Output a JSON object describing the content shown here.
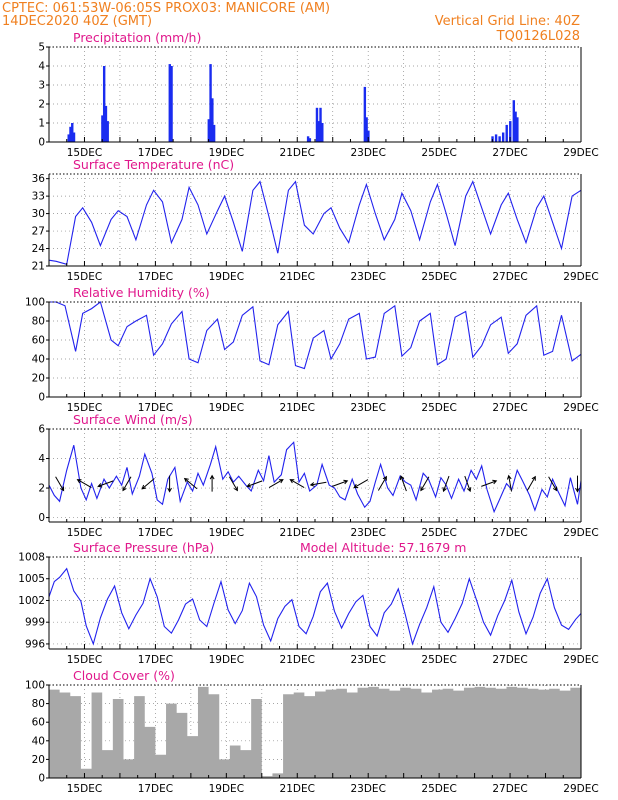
{
  "header": {
    "line1_left": "CPTEC:   061:53W-06:05S   PROX03: MANICORE (AM)",
    "line2_left": "14DEC2020 40Z (GMT)",
    "line2_right": "Vertical Grid Line: 40Z",
    "line3_right": "TQ0126L028"
  },
  "x_ticks": [
    "15DEC",
    "17DEC",
    "19DEC",
    "21DEC",
    "23DEC",
    "25DEC",
    "27DEC",
    "29DEC"
  ],
  "chart_data": [
    {
      "type": "bar",
      "title": "Precipitation (mm/h)",
      "ylim": [
        0,
        5
      ],
      "yticks": [
        "0",
        "1",
        "2",
        "3",
        "4",
        "5"
      ],
      "grid": true,
      "x_unit": "day offset from 14DEC2020 40Z",
      "x": [
        0.55,
        0.6,
        0.65,
        0.7,
        1.5,
        1.55,
        1.6,
        1.65,
        3.4,
        3.45,
        4.5,
        4.55,
        4.6,
        4.65,
        7.3,
        7.35,
        7.55,
        7.6,
        7.65,
        7.7,
        8.9,
        8.95,
        9.0,
        12.5,
        12.6,
        12.7,
        12.8,
        12.9,
        13.0,
        13.1,
        13.15,
        13.2
      ],
      "values": [
        0.4,
        0.8,
        1.0,
        0.5,
        1.4,
        4.0,
        1.9,
        1.1,
        4.1,
        4.0,
        1.2,
        4.1,
        2.3,
        0.9,
        0.3,
        0.2,
        1.8,
        1.1,
        1.8,
        1.0,
        2.9,
        1.3,
        0.6,
        0.3,
        0.4,
        0.3,
        0.5,
        0.9,
        1.1,
        2.2,
        1.6,
        1.3
      ]
    },
    {
      "type": "line",
      "title": "Surface Temperature (nC)",
      "ylim": [
        21,
        36.8
      ],
      "yticks": [
        "21",
        "24",
        "27",
        "30",
        "33",
        "36"
      ],
      "grid": true,
      "x": [
        0,
        0.2,
        0.5,
        0.75,
        0.95,
        1.2,
        1.45,
        1.75,
        1.95,
        2.2,
        2.45,
        2.75,
        2.95,
        3.2,
        3.45,
        3.75,
        3.95,
        4.2,
        4.45,
        4.75,
        4.95,
        5.2,
        5.45,
        5.75,
        5.95,
        6.2,
        6.45,
        6.75,
        6.95,
        7.2,
        7.45,
        7.75,
        7.95,
        8.2,
        8.45,
        8.75,
        8.95,
        9.2,
        9.45,
        9.75,
        9.95,
        10.2,
        10.45,
        10.75,
        10.95,
        11.2,
        11.45,
        11.75,
        11.95,
        12.2,
        12.45,
        12.75,
        12.95,
        13.2,
        13.45,
        13.75,
        13.95,
        14.2,
        14.45,
        14.75,
        15.0
      ],
      "y": [
        22,
        21.8,
        21.3,
        29.5,
        31,
        28.5,
        24.5,
        29,
        30.5,
        29.5,
        25.5,
        31.5,
        34,
        32,
        25,
        29,
        34.5,
        31.5,
        26.5,
        30.5,
        33,
        28.5,
        23.5,
        34,
        35.5,
        29.5,
        23.2,
        34,
        35.5,
        28,
        26.5,
        30,
        31,
        27.5,
        25,
        31.5,
        35,
        30,
        25.5,
        29,
        33.5,
        30.5,
        25.5,
        32,
        35,
        30,
        24.5,
        33,
        35.5,
        31,
        26.5,
        31.5,
        33.5,
        29,
        25,
        31,
        33,
        28.5,
        24,
        33,
        34
      ]
    },
    {
      "type": "line",
      "title": "Relative Humidity (%)",
      "ylim": [
        0,
        100
      ],
      "yticks": [
        "0",
        "20",
        "40",
        "60",
        "80",
        "100"
      ],
      "grid": true,
      "x": [
        0,
        0.2,
        0.45,
        0.75,
        0.95,
        1.2,
        1.45,
        1.75,
        1.95,
        2.2,
        2.45,
        2.75,
        2.95,
        3.2,
        3.45,
        3.75,
        3.95,
        4.2,
        4.45,
        4.75,
        4.95,
        5.2,
        5.45,
        5.75,
        5.95,
        6.2,
        6.45,
        6.75,
        6.95,
        7.2,
        7.45,
        7.75,
        7.95,
        8.2,
        8.45,
        8.75,
        8.95,
        9.2,
        9.45,
        9.75,
        9.95,
        10.2,
        10.45,
        10.75,
        10.95,
        11.2,
        11.45,
        11.75,
        11.95,
        12.2,
        12.45,
        12.75,
        12.95,
        13.2,
        13.45,
        13.75,
        13.95,
        14.2,
        14.45,
        14.75,
        15.0
      ],
      "y": [
        100,
        100,
        96,
        48,
        88,
        93,
        100,
        60,
        54,
        74,
        80,
        86,
        44,
        56,
        77,
        90,
        40,
        36,
        70,
        82,
        50,
        58,
        86,
        95,
        38,
        34,
        76,
        90,
        33,
        30,
        62,
        70,
        40,
        56,
        82,
        88,
        40,
        42,
        88,
        96,
        43,
        52,
        80,
        88,
        34,
        40,
        84,
        90,
        42,
        54,
        76,
        84,
        46,
        56,
        86,
        96,
        44,
        48,
        86,
        38,
        45
      ]
    },
    {
      "type": "line",
      "title": "Surface Wind (m/s)",
      "ylim": [
        -0.3,
        6
      ],
      "yticks": [
        "0",
        "2",
        "4",
        "6"
      ],
      "grid": true,
      "x": [
        0,
        0.15,
        0.3,
        0.5,
        0.7,
        0.9,
        1.05,
        1.2,
        1.35,
        1.55,
        1.7,
        1.9,
        2.05,
        2.2,
        2.35,
        2.55,
        2.7,
        2.9,
        3.05,
        3.2,
        3.35,
        3.55,
        3.7,
        3.9,
        4.05,
        4.2,
        4.35,
        4.55,
        4.7,
        4.9,
        5.05,
        5.2,
        5.35,
        5.55,
        5.7,
        5.9,
        6.05,
        6.2,
        6.35,
        6.55,
        6.7,
        6.9,
        7.05,
        7.2,
        7.35,
        7.55,
        7.7,
        7.9,
        8.05,
        8.2,
        8.35,
        8.55,
        8.7,
        8.9,
        9.05,
        9.2,
        9.35,
        9.55,
        9.7,
        9.9,
        10.05,
        10.2,
        10.35,
        10.55,
        10.7,
        10.9,
        11.05,
        11.2,
        11.35,
        11.55,
        11.7,
        11.9,
        12.05,
        12.2,
        12.35,
        12.55,
        12.7,
        12.9,
        13.05,
        13.2,
        13.35,
        13.55,
        13.7,
        13.9,
        14.05,
        14.2,
        14.35,
        14.55,
        14.7,
        14.9,
        15.0
      ],
      "y": [
        2.2,
        1.5,
        1.1,
        3.2,
        4.9,
        2.0,
        1.2,
        2.3,
        1.3,
        2.6,
        2.0,
        2.8,
        2.2,
        3.4,
        1.6,
        2.8,
        4.3,
        3.0,
        1.2,
        0.9,
        2.6,
        3.4,
        1.1,
        2.4,
        1.8,
        3.0,
        2.2,
        3.6,
        4.8,
        2.6,
        3.1,
        2.4,
        2.8,
        2.2,
        1.8,
        3.2,
        2.5,
        4.2,
        2.4,
        2.9,
        4.6,
        5.1,
        2.4,
        3.0,
        1.8,
        2.2,
        3.6,
        2.2,
        2.0,
        1.4,
        1.2,
        2.6,
        1.6,
        0.7,
        1.1,
        2.4,
        3.6,
        2.0,
        1.5,
        2.8,
        2.4,
        2.2,
        1.2,
        3.0,
        2.6,
        1.4,
        2.7,
        2.2,
        1.3,
        2.6,
        1.8,
        3.2,
        2.6,
        3.5,
        1.9,
        0.4,
        1.2,
        2.3,
        1.9,
        3.2,
        2.5,
        1.5,
        0.5,
        1.9,
        1.4,
        2.6,
        1.8,
        0.8,
        2.7,
        0.9,
        2.5
      ]
    },
    {
      "type": "line",
      "title": "Surface Pressure (hPa)",
      "annotation": "Model Altitude: 57.1679 m",
      "ylim": [
        995.3,
        1008
      ],
      "yticks": [
        "996",
        "999",
        "1002",
        "1005",
        "1008"
      ],
      "grid": true,
      "x": [
        0,
        0.15,
        0.3,
        0.5,
        0.7,
        0.9,
        1.05,
        1.25,
        1.45,
        1.65,
        1.85,
        2.05,
        2.25,
        2.45,
        2.65,
        2.85,
        3.05,
        3.25,
        3.45,
        3.65,
        3.85,
        4.05,
        4.25,
        4.45,
        4.65,
        4.85,
        5.05,
        5.25,
        5.45,
        5.65,
        5.85,
        6.05,
        6.25,
        6.45,
        6.65,
        6.85,
        7.05,
        7.25,
        7.45,
        7.65,
        7.85,
        8.05,
        8.25,
        8.45,
        8.65,
        8.85,
        9.05,
        9.25,
        9.45,
        9.65,
        9.85,
        10.05,
        10.25,
        10.45,
        10.65,
        10.85,
        11.05,
        11.25,
        11.45,
        11.65,
        11.85,
        12.05,
        12.25,
        12.45,
        12.65,
        12.85,
        13.05,
        13.25,
        13.45,
        13.65,
        13.85,
        14.05,
        14.25,
        14.45,
        14.65,
        14.85,
        15.0
      ],
      "y": [
        1002.5,
        1004.6,
        1005.2,
        1006.4,
        1003.3,
        1001.9,
        998.5,
        996.0,
        999.6,
        1002.2,
        1004.0,
        1000.3,
        998.1,
        1000.0,
        1001.6,
        1005.0,
        1002.5,
        998.4,
        997.5,
        999.3,
        1001.5,
        1002.2,
        999.3,
        998.4,
        1001.6,
        1004.6,
        1000.7,
        998.8,
        1000.6,
        1004.4,
        1002.5,
        998.6,
        996.4,
        999.5,
        1001.2,
        1002.1,
        998.4,
        997.4,
        999.8,
        1003.2,
        1004.4,
        1000.5,
        998.2,
        1000.2,
        1001.8,
        1002.7,
        998.4,
        997.1,
        1000.3,
        1001.5,
        1003.6,
        1000.0,
        996.0,
        998.7,
        1001.0,
        1003.9,
        999.0,
        997.6,
        999.5,
        1001.6,
        1005.0,
        1002.1,
        999.0,
        997.2,
        999.9,
        1002.0,
        1004.8,
        1000.4,
        997.4,
        999.7,
        1003.0,
        1005.0,
        1001.0,
        998.6,
        998.0,
        999.4,
        1000.2
      ]
    },
    {
      "type": "area",
      "title": "Cloud Cover (%)",
      "ylim": [
        0,
        100
      ],
      "yticks": [
        "0",
        "20",
        "40",
        "60",
        "80",
        "100"
      ],
      "grid": true,
      "x": [
        0,
        0.3,
        0.6,
        0.9,
        1.2,
        1.5,
        1.8,
        2.1,
        2.4,
        2.7,
        3.0,
        3.3,
        3.6,
        3.9,
        4.2,
        4.5,
        4.8,
        5.1,
        5.4,
        5.7,
        6.0,
        6.3,
        6.6,
        6.9,
        7.2,
        7.5,
        7.8,
        8.1,
        8.4,
        8.7,
        9.0,
        9.3,
        9.6,
        9.9,
        10.2,
        10.5,
        10.8,
        11.1,
        11.4,
        11.7,
        12.0,
        12.3,
        12.6,
        12.9,
        13.2,
        13.5,
        13.8,
        14.1,
        14.4,
        14.7,
        15.0
      ],
      "y": [
        95,
        92,
        88,
        10,
        92,
        30,
        85,
        20,
        88,
        55,
        25,
        80,
        70,
        45,
        98,
        90,
        20,
        35,
        30,
        85,
        2,
        5,
        90,
        92,
        88,
        93,
        95,
        96,
        92,
        97,
        98,
        96,
        94,
        97,
        96,
        92,
        95,
        96,
        94,
        97,
        98,
        97,
        96,
        98,
        97,
        96,
        95,
        96,
        94,
        97,
        96
      ]
    }
  ],
  "wind_arrows": {
    "x": [
      0.3,
      1.0,
      1.6,
      2.2,
      2.8,
      3.4,
      4.0,
      4.6,
      5.2,
      5.8,
      6.4,
      7.0,
      7.6,
      8.2,
      8.8,
      9.4,
      10.0,
      10.6,
      11.2,
      11.8,
      12.4,
      13.0,
      13.6,
      14.2,
      14.9
    ],
    "direction_deg": [
      300,
      150,
      200,
      240,
      220,
      270,
      140,
      90,
      300,
      200,
      30,
      150,
      190,
      20,
      210,
      60,
      110,
      240,
      250,
      290,
      20,
      100,
      60,
      300,
      270
    ]
  }
}
